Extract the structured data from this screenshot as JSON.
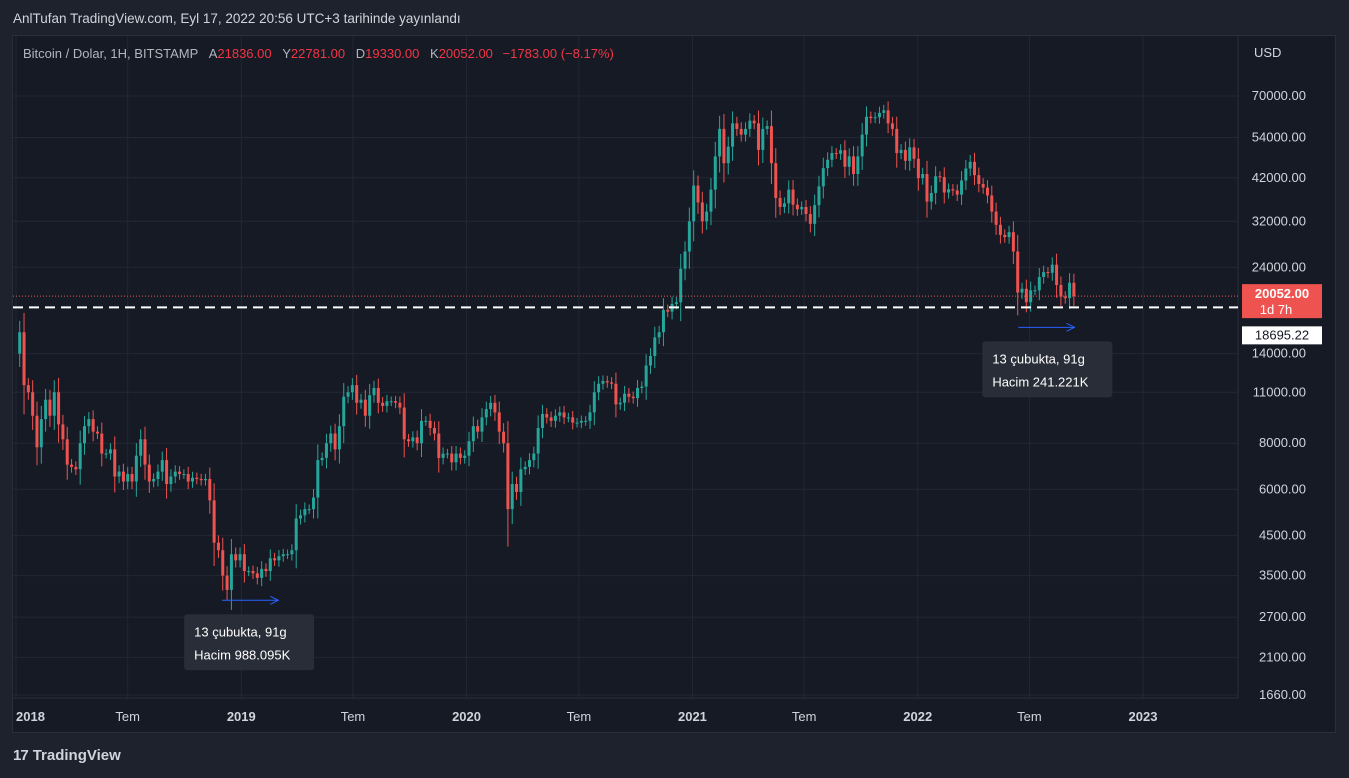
{
  "header": {
    "published": "AnlTufan TradingView.com, Eyl 17, 2022 20:56 UTC+3 tarihinde yayınlandı"
  },
  "legend": {
    "symbol": "Bitcoin / Dolar, 1H, BITSTAMP",
    "open_label": "A",
    "open": "21836.00",
    "high_label": "Y",
    "high": "22781.00",
    "low_label": "D",
    "low": "19330.00",
    "close_label": "K",
    "close": "20052.00",
    "change": "−1783.00 (−8.17%)"
  },
  "colors": {
    "up": "#26a69a",
    "down": "#ef5350",
    "background": "#161a25",
    "text": "#d1d4dc",
    "ray": "#2962ff"
  },
  "chart_data": {
    "type": "candlestick",
    "symbol": "Bitcoin / Dolar",
    "interval": "1H",
    "exchange": "BITSTAMP",
    "currency": "USD",
    "y_scale": "log",
    "y_ticks": [
      "70000.00",
      "54000.00",
      "42000.00",
      "32000.00",
      "24000.00",
      "14000.00",
      "11000.00",
      "8000.00",
      "6000.00",
      "4500.00",
      "3500.00",
      "2700.00",
      "2100.00",
      "1660.00"
    ],
    "x_ticks": [
      "2018",
      "Tem",
      "2019",
      "Tem",
      "2020",
      "Tem",
      "2021",
      "Tem",
      "2022",
      "Tem",
      "2023"
    ],
    "price_labels": {
      "last": "20052.00",
      "countdown": "1d 7h",
      "level": "18695.22"
    },
    "horizontal_level": 18695.22,
    "last_price": 20052.0,
    "annotations": [
      {
        "line1": "13 çubukta, 91g",
        "line2": "Hacim 988.095K",
        "from_date": "2018-12-01",
        "to_date": "2019-03-02",
        "price": 3000
      },
      {
        "line1": "13 çubukta, 91g",
        "line2": "Hacim 241.221K",
        "from_date": "2022-06-13",
        "to_date": "2022-09-12",
        "price": 16500
      }
    ],
    "series": [
      {
        "date": "2017-12-31",
        "close": 14000
      },
      {
        "date": "2018-01-07",
        "close": 16000
      },
      {
        "date": "2018-01-14",
        "close": 11500
      },
      {
        "date": "2018-01-21",
        "close": 11000
      },
      {
        "date": "2018-01-28",
        "close": 9500
      },
      {
        "date": "2018-02-04",
        "close": 7800
      },
      {
        "date": "2018-02-11",
        "close": 9300
      },
      {
        "date": "2018-02-18",
        "close": 10500
      },
      {
        "date": "2018-02-25",
        "close": 9500
      },
      {
        "date": "2018-03-04",
        "close": 11000
      },
      {
        "date": "2018-03-11",
        "close": 9000
      },
      {
        "date": "2018-03-18",
        "close": 8200
      },
      {
        "date": "2018-03-25",
        "close": 7000
      },
      {
        "date": "2018-04-01",
        "close": 6900
      },
      {
        "date": "2018-04-08",
        "close": 6800
      },
      {
        "date": "2018-04-15",
        "close": 8000
      },
      {
        "date": "2018-04-22",
        "close": 8900
      },
      {
        "date": "2018-04-29",
        "close": 9300
      },
      {
        "date": "2018-05-06",
        "close": 8600
      },
      {
        "date": "2018-05-13",
        "close": 8500
      },
      {
        "date": "2018-05-20",
        "close": 7500
      },
      {
        "date": "2018-05-27",
        "close": 7500
      },
      {
        "date": "2018-06-03",
        "close": 7700
      },
      {
        "date": "2018-06-10",
        "close": 6500
      },
      {
        "date": "2018-06-17",
        "close": 6700
      },
      {
        "date": "2018-06-24",
        "close": 6300
      },
      {
        "date": "2018-07-01",
        "close": 6600
      },
      {
        "date": "2018-07-08",
        "close": 6300
      },
      {
        "date": "2018-07-15",
        "close": 7400
      },
      {
        "date": "2018-07-22",
        "close": 8200
      },
      {
        "date": "2018-07-29",
        "close": 7000
      },
      {
        "date": "2018-08-05",
        "close": 6300
      },
      {
        "date": "2018-08-12",
        "close": 6400
      },
      {
        "date": "2018-08-19",
        "close": 6700
      },
      {
        "date": "2018-08-26",
        "close": 7200
      },
      {
        "date": "2018-09-02",
        "close": 6200
      },
      {
        "date": "2018-09-09",
        "close": 6500
      },
      {
        "date": "2018-09-16",
        "close": 6700
      },
      {
        "date": "2018-09-23",
        "close": 6600
      },
      {
        "date": "2018-09-30",
        "close": 6600
      },
      {
        "date": "2018-10-07",
        "close": 6300
      },
      {
        "date": "2018-10-14",
        "close": 6450
      },
      {
        "date": "2018-10-21",
        "close": 6400
      },
      {
        "date": "2018-10-28",
        "close": 6350
      },
      {
        "date": "2018-11-04",
        "close": 6400
      },
      {
        "date": "2018-11-11",
        "close": 5600
      },
      {
        "date": "2018-11-18",
        "close": 4300
      },
      {
        "date": "2018-11-25",
        "close": 4100
      },
      {
        "date": "2018-12-02",
        "close": 3500
      },
      {
        "date": "2018-12-09",
        "close": 3200
      },
      {
        "date": "2018-12-16",
        "close": 4000
      },
      {
        "date": "2018-12-23",
        "close": 3850
      },
      {
        "date": "2018-12-30",
        "close": 4000
      },
      {
        "date": "2019-01-06",
        "close": 3600
      },
      {
        "date": "2019-01-13",
        "close": 3600
      },
      {
        "date": "2019-01-20",
        "close": 3550
      },
      {
        "date": "2019-01-27",
        "close": 3450
      },
      {
        "date": "2019-02-03",
        "close": 3650
      },
      {
        "date": "2019-02-10",
        "close": 3600
      },
      {
        "date": "2019-02-17",
        "close": 3900
      },
      {
        "date": "2019-02-24",
        "close": 3850
      },
      {
        "date": "2019-03-03",
        "close": 3950
      },
      {
        "date": "2019-03-10",
        "close": 4000
      },
      {
        "date": "2019-03-17",
        "close": 4000
      },
      {
        "date": "2019-03-24",
        "close": 4100
      },
      {
        "date": "2019-03-31",
        "close": 5000
      },
      {
        "date": "2019-04-07",
        "close": 5100
      },
      {
        "date": "2019-04-14",
        "close": 5300
      },
      {
        "date": "2019-04-21",
        "close": 5300
      },
      {
        "date": "2019-04-28",
        "close": 5700
      },
      {
        "date": "2019-05-05",
        "close": 7200
      },
      {
        "date": "2019-05-12",
        "close": 7300
      },
      {
        "date": "2019-05-19",
        "close": 8000
      },
      {
        "date": "2019-05-26",
        "close": 8500
      },
      {
        "date": "2019-06-02",
        "close": 7700
      },
      {
        "date": "2019-06-09",
        "close": 8900
      },
      {
        "date": "2019-06-16",
        "close": 10700
      },
      {
        "date": "2019-06-23",
        "close": 11000
      },
      {
        "date": "2019-06-30",
        "close": 11500
      },
      {
        "date": "2019-07-07",
        "close": 10300
      },
      {
        "date": "2019-07-14",
        "close": 10500
      },
      {
        "date": "2019-07-21",
        "close": 9500
      },
      {
        "date": "2019-07-28",
        "close": 10800
      },
      {
        "date": "2019-08-04",
        "close": 11300
      },
      {
        "date": "2019-08-11",
        "close": 10300
      },
      {
        "date": "2019-08-18",
        "close": 10100
      },
      {
        "date": "2019-08-25",
        "close": 10400
      },
      {
        "date": "2019-09-01",
        "close": 10400
      },
      {
        "date": "2019-09-08",
        "close": 10300
      },
      {
        "date": "2019-09-15",
        "close": 10000
      },
      {
        "date": "2019-09-22",
        "close": 8200
      },
      {
        "date": "2019-09-29",
        "close": 8100
      },
      {
        "date": "2019-10-06",
        "close": 8300
      },
      {
        "date": "2019-10-13",
        "close": 8000
      },
      {
        "date": "2019-10-20",
        "close": 9200
      },
      {
        "date": "2019-10-27",
        "close": 9200
      },
      {
        "date": "2019-11-03",
        "close": 8800
      },
      {
        "date": "2019-11-10",
        "close": 8500
      },
      {
        "date": "2019-11-17",
        "close": 7300
      },
      {
        "date": "2019-11-24",
        "close": 7500
      },
      {
        "date": "2019-12-01",
        "close": 7500
      },
      {
        "date": "2019-12-08",
        "close": 7100
      },
      {
        "date": "2019-12-15",
        "close": 7500
      },
      {
        "date": "2019-12-22",
        "close": 7300
      },
      {
        "date": "2019-12-29",
        "close": 7400
      },
      {
        "date": "2020-01-05",
        "close": 8100
      },
      {
        "date": "2020-01-12",
        "close": 8900
      },
      {
        "date": "2020-01-19",
        "close": 8600
      },
      {
        "date": "2020-01-26",
        "close": 9400
      },
      {
        "date": "2020-02-02",
        "close": 9900
      },
      {
        "date": "2020-02-09",
        "close": 10300
      },
      {
        "date": "2020-02-16",
        "close": 9700
      },
      {
        "date": "2020-02-23",
        "close": 8600
      },
      {
        "date": "2020-03-01",
        "close": 8000
      },
      {
        "date": "2020-03-08",
        "close": 5300
      },
      {
        "date": "2020-03-15",
        "close": 6200
      },
      {
        "date": "2020-03-22",
        "close": 5900
      },
      {
        "date": "2020-03-29",
        "close": 6800
      },
      {
        "date": "2020-04-05",
        "close": 6900
      },
      {
        "date": "2020-04-12",
        "close": 7200
      },
      {
        "date": "2020-04-19",
        "close": 7500
      },
      {
        "date": "2020-04-26",
        "close": 8800
      },
      {
        "date": "2020-05-03",
        "close": 9600
      },
      {
        "date": "2020-05-10",
        "close": 9400
      },
      {
        "date": "2020-05-17",
        "close": 9200
      },
      {
        "date": "2020-05-24",
        "close": 9500
      },
      {
        "date": "2020-05-31",
        "close": 9700
      },
      {
        "date": "2020-06-07",
        "close": 9400
      },
      {
        "date": "2020-06-14",
        "close": 9400
      },
      {
        "date": "2020-06-21",
        "close": 9100
      },
      {
        "date": "2020-06-28",
        "close": 9100
      },
      {
        "date": "2020-07-05",
        "close": 9200
      },
      {
        "date": "2020-07-12",
        "close": 9200
      },
      {
        "date": "2020-07-19",
        "close": 9700
      },
      {
        "date": "2020-07-26",
        "close": 11000
      },
      {
        "date": "2020-08-02",
        "close": 11600
      },
      {
        "date": "2020-08-09",
        "close": 11800
      },
      {
        "date": "2020-08-16",
        "close": 11700
      },
      {
        "date": "2020-08-23",
        "close": 11600
      },
      {
        "date": "2020-08-30",
        "close": 10200
      },
      {
        "date": "2020-09-06",
        "close": 10300
      },
      {
        "date": "2020-09-13",
        "close": 10900
      },
      {
        "date": "2020-09-20",
        "close": 10700
      },
      {
        "date": "2020-09-27",
        "close": 10600
      },
      {
        "date": "2020-10-04",
        "close": 11300
      },
      {
        "date": "2020-10-11",
        "close": 11400
      },
      {
        "date": "2020-10-18",
        "close": 13000
      },
      {
        "date": "2020-10-25",
        "close": 13800
      },
      {
        "date": "2020-11-01",
        "close": 15500
      },
      {
        "date": "2020-11-08",
        "close": 16000
      },
      {
        "date": "2020-11-15",
        "close": 18400
      },
      {
        "date": "2020-11-22",
        "close": 18200
      },
      {
        "date": "2020-11-29",
        "close": 19100
      },
      {
        "date": "2020-12-06",
        "close": 19300
      },
      {
        "date": "2020-12-13",
        "close": 23800
      },
      {
        "date": "2020-12-20",
        "close": 26500
      },
      {
        "date": "2020-12-27",
        "close": 32000
      },
      {
        "date": "2021-01-03",
        "close": 40000
      },
      {
        "date": "2021-01-10",
        "close": 36000
      },
      {
        "date": "2021-01-17",
        "close": 32000
      },
      {
        "date": "2021-01-24",
        "close": 34000
      },
      {
        "date": "2021-01-31",
        "close": 39000
      },
      {
        "date": "2021-02-07",
        "close": 48000
      },
      {
        "date": "2021-02-14",
        "close": 57000
      },
      {
        "date": "2021-02-21",
        "close": 46000
      },
      {
        "date": "2021-02-28",
        "close": 51000
      },
      {
        "date": "2021-03-07",
        "close": 59000
      },
      {
        "date": "2021-03-14",
        "close": 57000
      },
      {
        "date": "2021-03-21",
        "close": 55000
      },
      {
        "date": "2021-03-28",
        "close": 57000
      },
      {
        "date": "2021-04-04",
        "close": 60000
      },
      {
        "date": "2021-04-11",
        "close": 59000
      },
      {
        "date": "2021-04-18",
        "close": 50000
      },
      {
        "date": "2021-04-25",
        "close": 57000
      },
      {
        "date": "2021-05-02",
        "close": 58000
      },
      {
        "date": "2021-05-09",
        "close": 46000
      },
      {
        "date": "2021-05-16",
        "close": 37000
      },
      {
        "date": "2021-05-23",
        "close": 35000
      },
      {
        "date": "2021-05-30",
        "close": 35800
      },
      {
        "date": "2021-06-06",
        "close": 39000
      },
      {
        "date": "2021-06-13",
        "close": 35500
      },
      {
        "date": "2021-06-20",
        "close": 34500
      },
      {
        "date": "2021-06-27",
        "close": 35000
      },
      {
        "date": "2021-07-04",
        "close": 33500
      },
      {
        "date": "2021-07-11",
        "close": 31500
      },
      {
        "date": "2021-07-18",
        "close": 35400
      },
      {
        "date": "2021-07-25",
        "close": 39800
      },
      {
        "date": "2021-08-01",
        "close": 44600
      },
      {
        "date": "2021-08-08",
        "close": 47000
      },
      {
        "date": "2021-08-15",
        "close": 49000
      },
      {
        "date": "2021-08-22",
        "close": 48800
      },
      {
        "date": "2021-08-29",
        "close": 49900
      },
      {
        "date": "2021-09-05",
        "close": 45000
      },
      {
        "date": "2021-09-12",
        "close": 48000
      },
      {
        "date": "2021-09-19",
        "close": 43000
      },
      {
        "date": "2021-09-26",
        "close": 48000
      },
      {
        "date": "2021-10-03",
        "close": 55000
      },
      {
        "date": "2021-10-10",
        "close": 61500
      },
      {
        "date": "2021-10-17",
        "close": 61000
      },
      {
        "date": "2021-10-24",
        "close": 61300
      },
      {
        "date": "2021-10-31",
        "close": 63000
      },
      {
        "date": "2021-11-07",
        "close": 64000
      },
      {
        "date": "2021-11-14",
        "close": 59000
      },
      {
        "date": "2021-11-21",
        "close": 57000
      },
      {
        "date": "2021-11-28",
        "close": 49000
      },
      {
        "date": "2021-12-05",
        "close": 50000
      },
      {
        "date": "2021-12-12",
        "close": 46700
      },
      {
        "date": "2021-12-19",
        "close": 50800
      },
      {
        "date": "2021-12-26",
        "close": 47300
      },
      {
        "date": "2022-01-02",
        "close": 41900
      },
      {
        "date": "2022-01-09",
        "close": 43000
      },
      {
        "date": "2022-01-16",
        "close": 36200
      },
      {
        "date": "2022-01-23",
        "close": 38200
      },
      {
        "date": "2022-01-30",
        "close": 42400
      },
      {
        "date": "2022-02-06",
        "close": 42200
      },
      {
        "date": "2022-02-13",
        "close": 38300
      },
      {
        "date": "2022-02-20",
        "close": 39100
      },
      {
        "date": "2022-02-27",
        "close": 38800
      },
      {
        "date": "2022-03-06",
        "close": 37800
      },
      {
        "date": "2022-03-13",
        "close": 41300
      },
      {
        "date": "2022-03-20",
        "close": 44500
      },
      {
        "date": "2022-03-27",
        "close": 46400
      },
      {
        "date": "2022-04-03",
        "close": 42700
      },
      {
        "date": "2022-04-10",
        "close": 40400
      },
      {
        "date": "2022-04-17",
        "close": 39500
      },
      {
        "date": "2022-04-24",
        "close": 37600
      },
      {
        "date": "2022-05-01",
        "close": 34000
      },
      {
        "date": "2022-05-08",
        "close": 31300
      },
      {
        "date": "2022-05-15",
        "close": 29400
      },
      {
        "date": "2022-05-22",
        "close": 29000
      },
      {
        "date": "2022-05-29",
        "close": 29900
      },
      {
        "date": "2022-06-05",
        "close": 26500
      },
      {
        "date": "2022-06-12",
        "close": 20500
      },
      {
        "date": "2022-06-19",
        "close": 21000
      },
      {
        "date": "2022-06-26",
        "close": 19300
      },
      {
        "date": "2022-07-03",
        "close": 20800
      },
      {
        "date": "2022-07-10",
        "close": 20800
      },
      {
        "date": "2022-07-17",
        "close": 22600
      },
      {
        "date": "2022-07-24",
        "close": 23300
      },
      {
        "date": "2022-07-31",
        "close": 23200
      },
      {
        "date": "2022-08-07",
        "close": 24400
      },
      {
        "date": "2022-08-14",
        "close": 21500
      },
      {
        "date": "2022-08-21",
        "close": 20000
      },
      {
        "date": "2022-08-28",
        "close": 19800
      },
      {
        "date": "2022-09-04",
        "close": 21800
      },
      {
        "date": "2022-09-11",
        "close": 20052
      }
    ]
  },
  "footer": {
    "logo_text": "TradingView",
    "logo_mark": "17"
  }
}
